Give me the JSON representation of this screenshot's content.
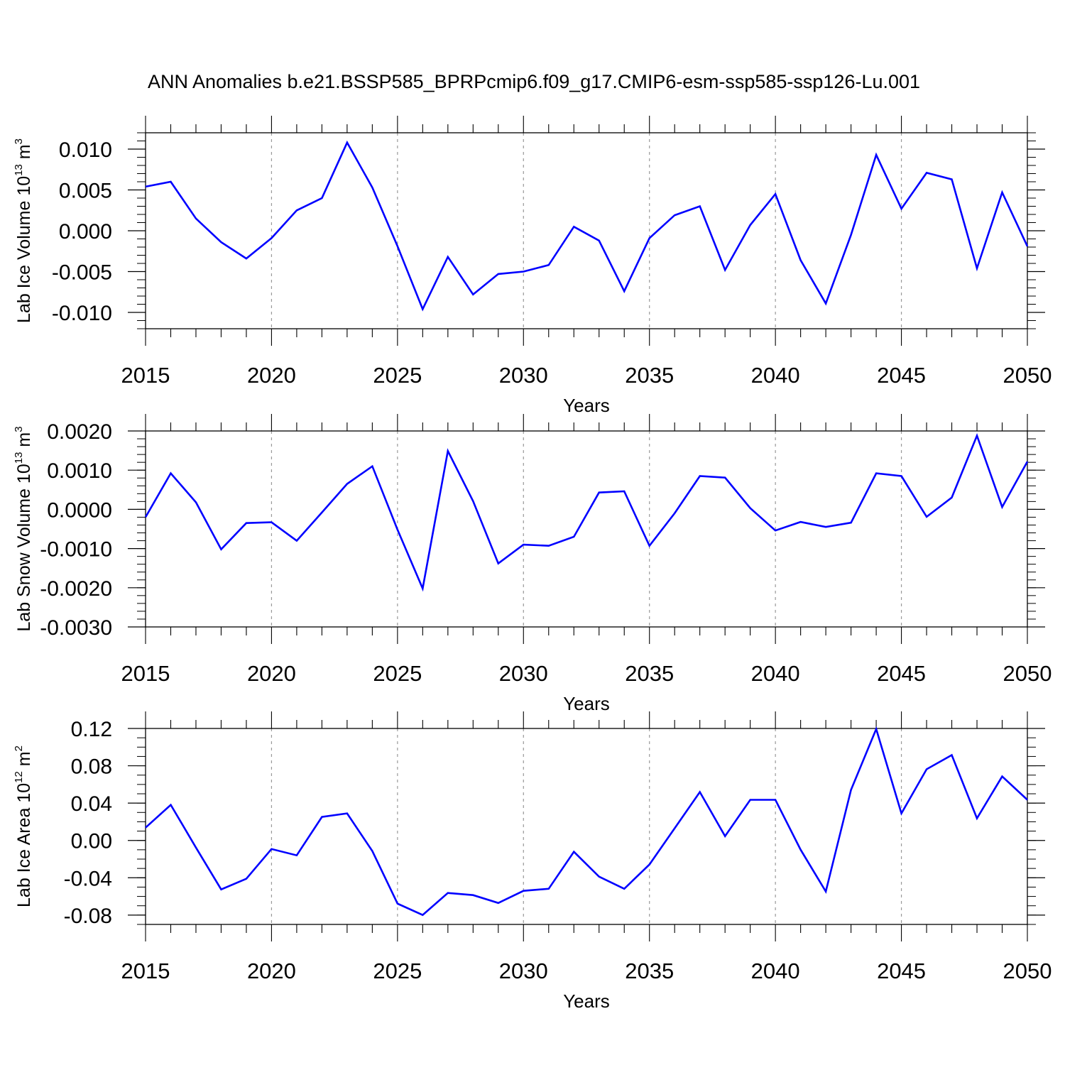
{
  "title": "ANN Anomalies b.e21.BSSP585_BPRPcmip6.f09_g17.CMIP6-esm-ssp585-ssp126-Lu.001",
  "line_color": "#0000ff",
  "chart_data": [
    {
      "type": "line",
      "ylabel": "Lab Ice Volume 10",
      "ylabel_sup": "13",
      "ylabel_unit": " m",
      "ylabel_unit_sup": "3",
      "xlabel": "Years",
      "xlim": [
        2015,
        2050
      ],
      "ylim": [
        -0.012,
        0.012
      ],
      "yticks": [
        0.01,
        0.005,
        0.0,
        -0.005,
        -0.01
      ],
      "ytick_labels": [
        "0.010",
        "0.005",
        "0.000",
        "-0.005",
        "-0.010"
      ],
      "yminor": 0.001,
      "xticks": [
        2015,
        2020,
        2025,
        2030,
        2035,
        2040,
        2045,
        2050
      ],
      "xtick_labels": [
        "2015",
        "2020",
        "2025",
        "2030",
        "2035",
        "2040",
        "2045",
        "2050"
      ],
      "grid": "dashed vertical at major x ticks",
      "x": [
        2015,
        2016,
        2017,
        2018,
        2019,
        2020,
        2021,
        2022,
        2023,
        2024,
        2025,
        2026,
        2027,
        2028,
        2029,
        2030,
        2031,
        2032,
        2033,
        2034,
        2035,
        2036,
        2037,
        2038,
        2039,
        2040,
        2041,
        2042,
        2043,
        2044,
        2045,
        2046,
        2047,
        2048,
        2049,
        2050
      ],
      "series": [
        {
          "values": [
            0.0054,
            0.006,
            0.0015,
            -0.0014,
            -0.0034,
            -0.0009,
            0.0025,
            0.004,
            0.0108,
            0.0053,
            -0.0019,
            -0.0096,
            -0.0032,
            -0.0078,
            -0.0053,
            -0.005,
            -0.0042,
            0.0005,
            -0.0012,
            -0.0074,
            -0.0009,
            0.0019,
            0.003,
            -0.0048,
            0.0007,
            0.0045,
            -0.0036,
            -0.0089,
            -0.0005,
            0.0093,
            0.0027,
            0.0071,
            0.0063,
            -0.0046,
            0.0047,
            -0.0019
          ]
        }
      ]
    },
    {
      "type": "line",
      "ylabel": "Lab Snow Volume 10",
      "ylabel_sup": "13",
      "ylabel_unit": " m",
      "ylabel_unit_sup": "3",
      "xlabel": "Years",
      "xlim": [
        2015,
        2050
      ],
      "ylim": [
        -0.003,
        0.002
      ],
      "yticks": [
        0.002,
        0.001,
        0.0,
        -0.001,
        -0.002,
        -0.003
      ],
      "ytick_labels": [
        "0.0020",
        "0.0010",
        "0.0000",
        "-0.0010",
        "-0.0020",
        "-0.0030"
      ],
      "yminor": 0.0002,
      "xticks": [
        2015,
        2020,
        2025,
        2030,
        2035,
        2040,
        2045,
        2050
      ],
      "xtick_labels": [
        "2015",
        "2020",
        "2025",
        "2030",
        "2035",
        "2040",
        "2045",
        "2050"
      ],
      "grid": "dashed vertical at major x ticks",
      "x": [
        2015,
        2016,
        2017,
        2018,
        2019,
        2020,
        2021,
        2022,
        2023,
        2024,
        2025,
        2026,
        2027,
        2028,
        2029,
        2030,
        2031,
        2032,
        2033,
        2034,
        2035,
        2036,
        2037,
        2038,
        2039,
        2040,
        2041,
        2042,
        2043,
        2044,
        2045,
        2046,
        2047,
        2048,
        2049,
        2050
      ],
      "series": [
        {
          "values": [
            -0.0002,
            0.00092,
            0.00018,
            -0.00102,
            -0.00035,
            -0.00033,
            -0.0008,
            -8e-05,
            0.00065,
            0.0011,
            -0.00052,
            -0.00202,
            0.00149,
            0.00021,
            -0.00138,
            -0.0009,
            -0.00093,
            -0.0007,
            0.00043,
            0.00046,
            -0.00093,
            -0.0001,
            0.00085,
            0.00081,
            3e-05,
            -0.00054,
            -0.00032,
            -0.00045,
            -0.00034,
            0.00092,
            0.00085,
            -0.00019,
            0.0003,
            0.00188,
            6e-05,
            0.00122
          ]
        }
      ]
    },
    {
      "type": "line",
      "ylabel": "Lab Ice Area 10",
      "ylabel_sup": "12",
      "ylabel_unit": " m",
      "ylabel_unit_sup": "2",
      "xlabel": "Years",
      "xlim": [
        2015,
        2050
      ],
      "ylim": [
        -0.09,
        0.12
      ],
      "yticks": [
        0.12,
        0.08,
        0.04,
        0.0,
        -0.04,
        -0.08
      ],
      "ytick_labels": [
        "0.12",
        "0.08",
        "0.04",
        "0.00",
        "-0.04",
        "-0.08"
      ],
      "yminor": 0.01,
      "xticks": [
        2015,
        2020,
        2025,
        2030,
        2035,
        2040,
        2045,
        2050
      ],
      "xtick_labels": [
        "2015",
        "2020",
        "2025",
        "2030",
        "2035",
        "2040",
        "2045",
        "2050"
      ],
      "grid": "dashed vertical at major x ticks",
      "x": [
        2015,
        2016,
        2017,
        2018,
        2019,
        2020,
        2021,
        2022,
        2023,
        2024,
        2025,
        2026,
        2027,
        2028,
        2029,
        2030,
        2031,
        2032,
        2033,
        2034,
        2035,
        2036,
        2037,
        2038,
        2039,
        2040,
        2041,
        2042,
        2043,
        2044,
        2045,
        2046,
        2047,
        2048,
        2049,
        2050
      ],
      "series": [
        {
          "values": [
            0.0137,
            0.0381,
            -0.0077,
            -0.0525,
            -0.0411,
            -0.0092,
            -0.016,
            0.0252,
            0.029,
            -0.0114,
            -0.0677,
            -0.0799,
            -0.0563,
            -0.0586,
            -0.067,
            -0.054,
            -0.0518,
            -0.0122,
            -0.0388,
            -0.0518,
            -0.0258,
            0.013,
            0.0519,
            0.0046,
            0.0435,
            0.0435,
            -0.0099,
            -0.0548,
            0.0542,
            0.1195,
            0.029,
            0.0763,
            0.0915,
            0.0237,
            0.0686,
            0.0435
          ]
        }
      ]
    }
  ]
}
